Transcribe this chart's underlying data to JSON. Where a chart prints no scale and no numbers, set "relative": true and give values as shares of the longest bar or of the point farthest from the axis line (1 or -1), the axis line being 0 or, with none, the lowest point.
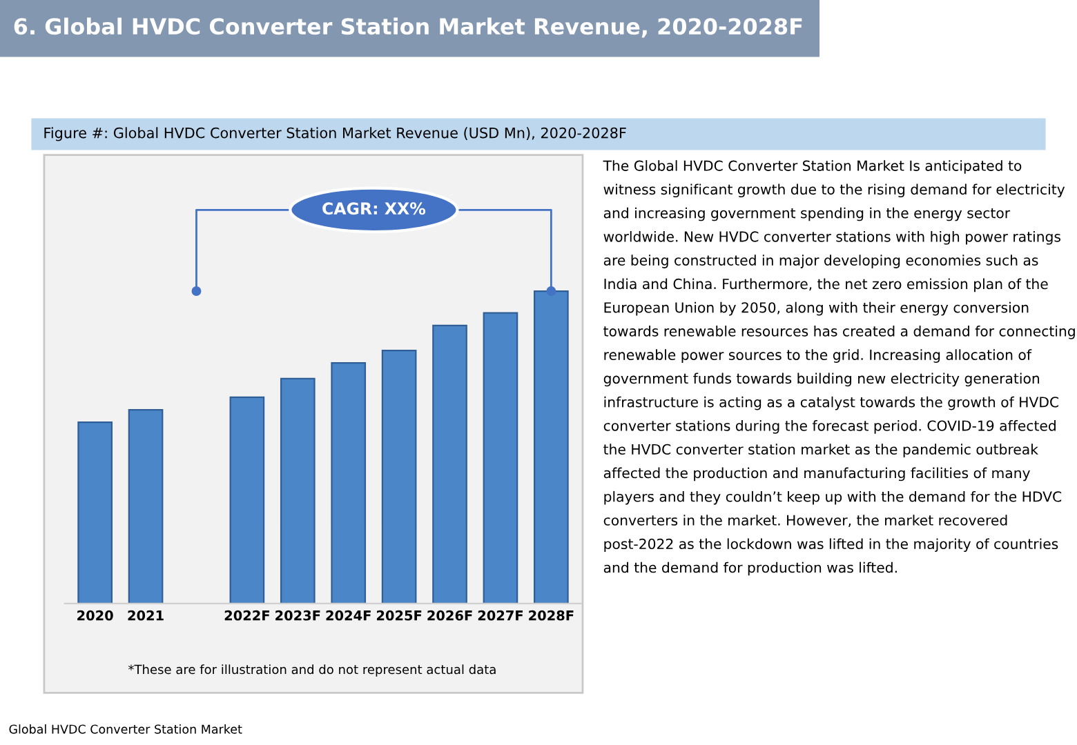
{
  "chart_data": {
    "type": "bar",
    "title": "6. Global HVDC Converter Station Market Revenue, 2020-2028F",
    "subtitle": "Figure #: Global HVDC Converter Station Market Revenue (USD Mn), 2020-2028F",
    "categories": [
      "2020",
      "2021",
      null,
      "2022F",
      "2023F",
      "2024F",
      "2025F",
      "2026F",
      "2027F",
      "2028F"
    ],
    "values": [
      0.58,
      0.62,
      null,
      0.66,
      0.72,
      0.77,
      0.81,
      0.89,
      0.93,
      1
    ],
    "color": "#4a86c8",
    "relative": true,
    "annotations": [
      "CAGR: XX%",
      "*These are for illustration and do not represent actual data",
      "The Global HVDC Converter Station Market Is anticipated to witness significant growth due to the rising demand for electricity and increasing government spending in the energy sector worldwide. New HVDC converter stations with high power ratings are being constructed in major developing economies such as India and China. Furthermore, the net zero emission plan of the European Union by 2050, along with their energy conversion towards renewable resources has created a demand for connecting renewable power sources to the grid. Increasing allocation of government funds towards building new electricity generation infrastructure is acting as a catalyst towards the growth of HVDC converter stations during the forecast period. COVID-19 affected the HVDC converter station market as the pandemic outbreak affected the production and manufacturing facilities of many players and they couldn’t keep up with the demand for the HDVC converters in the market. However, the market recovered post-2022 as the lockdown was lifted in the majority of countries and the demand for production was lifted.",
      "Global HVDC Converter Station Market"
    ]
  }
}
